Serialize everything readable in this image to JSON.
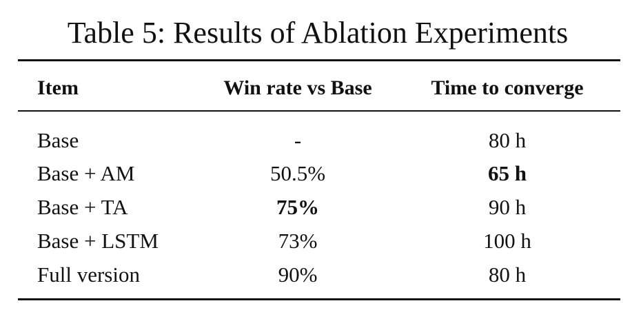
{
  "caption": "Table 5: Results of Ablation Experiments",
  "table": {
    "headers": [
      "Item",
      "Win rate vs Base",
      "Time to converge"
    ],
    "rows": [
      {
        "item": "Base",
        "win_rate": "-",
        "time": "80 h"
      },
      {
        "item": "Base + AM",
        "win_rate": "50.5%",
        "time": "65 h"
      },
      {
        "item": "Base + TA",
        "win_rate": "75%",
        "time": "90 h"
      },
      {
        "item": "Base + LSTM",
        "win_rate": "73%",
        "time": "100 h"
      },
      {
        "item": "Full version",
        "win_rate": "90%",
        "time": "80 h"
      }
    ]
  }
}
